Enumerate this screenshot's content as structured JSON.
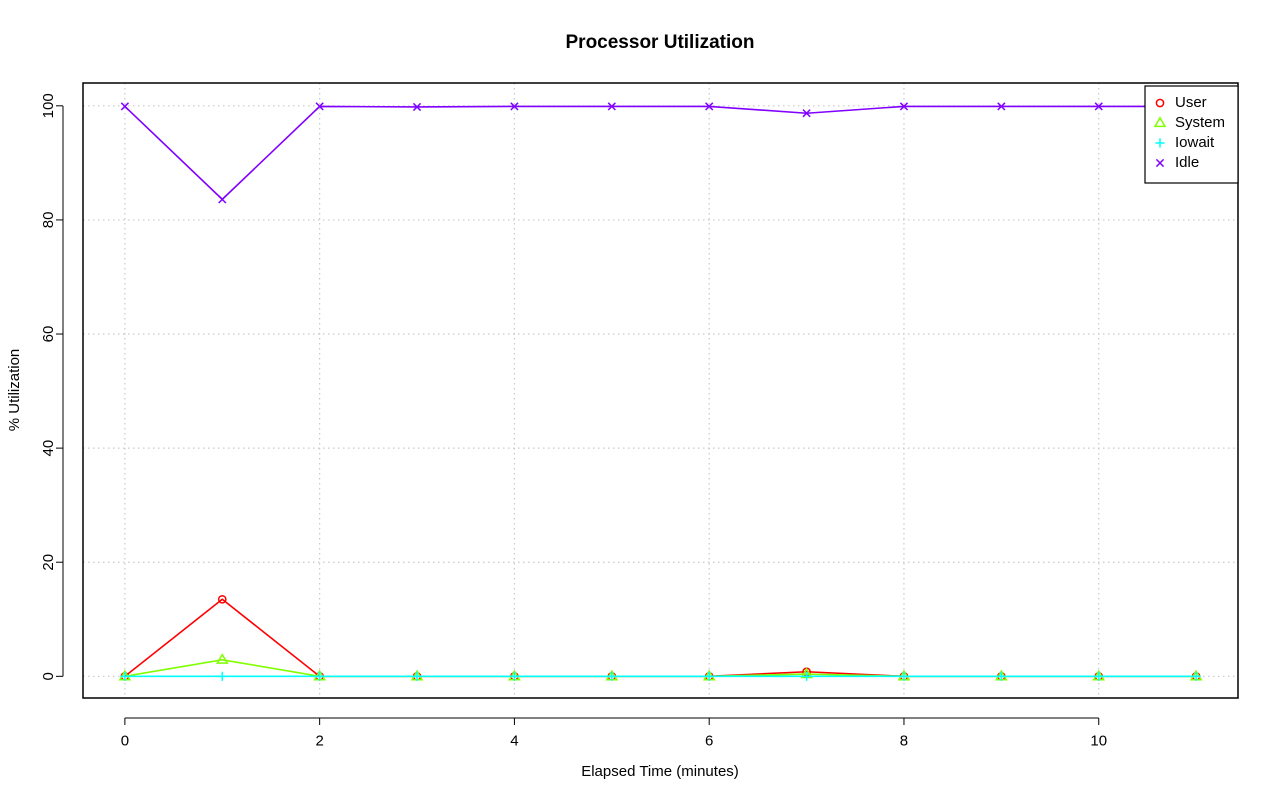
{
  "chart_data": {
    "type": "line",
    "title": "Processor Utilization",
    "xlabel": "Elapsed Time (minutes)",
    "ylabel": "% Utilization",
    "xlim": [
      -0.43,
      11.43
    ],
    "ylim": [
      -3.8,
      104.0
    ],
    "x_ticks": [
      0,
      2,
      4,
      6,
      8,
      10
    ],
    "y_ticks": [
      0,
      20,
      40,
      60,
      80,
      100
    ],
    "grid": true,
    "legend_position": "top-right",
    "x": [
      0,
      1,
      2,
      3,
      4,
      5,
      6,
      7,
      8,
      9,
      10,
      11
    ],
    "series": [
      {
        "name": "User",
        "color": "#ff0000",
        "marker": "circle",
        "values": [
          0,
          13.5,
          0,
          0,
          0,
          0,
          0,
          0.8,
          0,
          0,
          0,
          0
        ]
      },
      {
        "name": "System",
        "color": "#80ff00",
        "marker": "triangle",
        "values": [
          0,
          2.9,
          0,
          0,
          0,
          0,
          0,
          0.4,
          0,
          0,
          0,
          0
        ]
      },
      {
        "name": "Iowait",
        "color": "#00ffff",
        "marker": "plus",
        "values": [
          0,
          0,
          0,
          0,
          0,
          0,
          0,
          0,
          0,
          0,
          0,
          0
        ]
      },
      {
        "name": "Idle",
        "color": "#8000ff",
        "marker": "cross",
        "values": [
          99.9,
          83.6,
          99.9,
          99.8,
          99.9,
          99.9,
          99.9,
          98.7,
          99.9,
          99.9,
          99.9,
          99.9
        ]
      }
    ]
  }
}
